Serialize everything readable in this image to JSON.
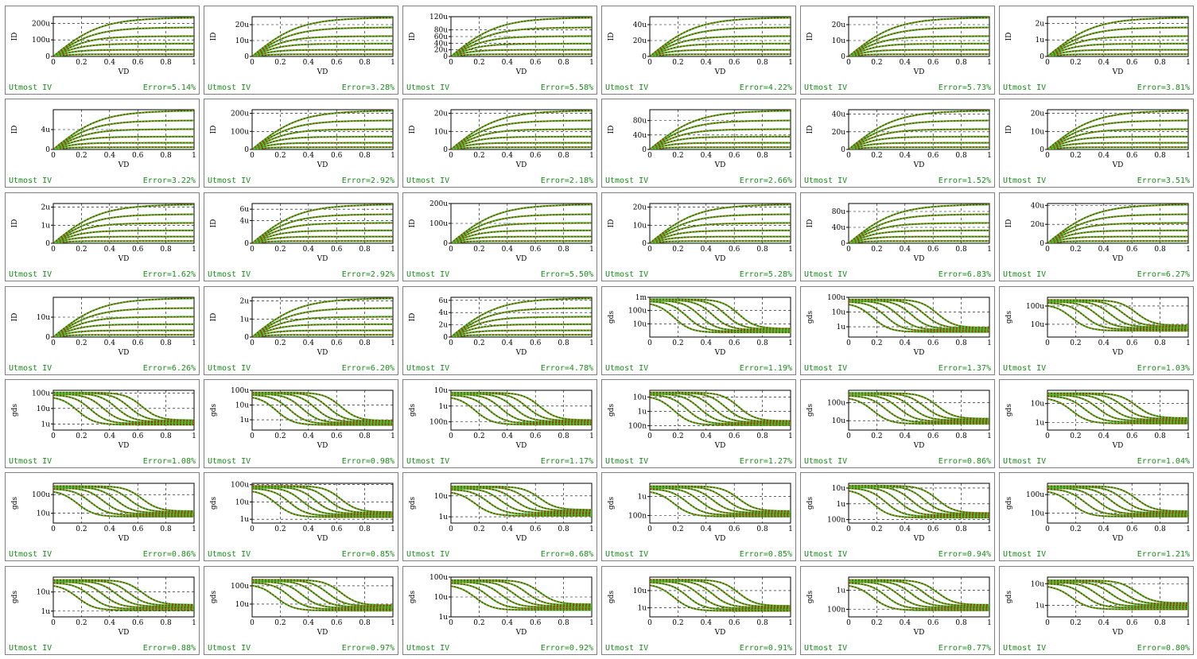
{
  "colors": {
    "measured": "#33cc33",
    "simulated": "#dd0000",
    "footer": "#1a8c1a"
  },
  "panel_footer_label": "Utmost IV",
  "chart_data": [
    {
      "type": "line",
      "plot": "id",
      "xlabel": "VD",
      "ylabel": "ID",
      "xticks": [
        "0",
        "0.2",
        "0.4",
        "0.6",
        "0.8",
        "1"
      ],
      "yticks": [
        "0",
        "100u",
        "200u"
      ],
      "ylim": [
        0,
        240
      ],
      "error": "Error=5.14%"
    },
    {
      "type": "line",
      "plot": "id",
      "xlabel": "VD",
      "ylabel": "ID",
      "xticks": [
        "0",
        "0.2",
        "0.4",
        "0.6",
        "0.8",
        "1"
      ],
      "yticks": [
        "0",
        "10u",
        "20u"
      ],
      "ylim": [
        0,
        25
      ],
      "error": "Error=3.28%"
    },
    {
      "type": "line",
      "plot": "id",
      "xlabel": "VD",
      "ylabel": "ID",
      "xticks": [
        "0",
        "0.2",
        "0.4",
        "0.6",
        "0.8",
        "1"
      ],
      "yticks": [
        "0",
        "20u",
        "40u",
        "60u",
        "80u",
        "120u"
      ],
      "ylim": [
        0,
        120
      ],
      "error": "Error=5.58%"
    },
    {
      "type": "line",
      "plot": "id",
      "xlabel": "VD",
      "ylabel": "ID",
      "xticks": [
        "0",
        "0.2",
        "0.4",
        "0.6",
        "0.8",
        "1"
      ],
      "yticks": [
        "0",
        "20u",
        "40u"
      ],
      "ylim": [
        0,
        50
      ],
      "error": "Error=4.22%"
    },
    {
      "type": "line",
      "plot": "id",
      "xlabel": "VD",
      "ylabel": "ID",
      "xticks": [
        "0",
        "0.2",
        "0.4",
        "0.6",
        "0.8",
        "1"
      ],
      "yticks": [
        "0",
        "10u",
        "20u"
      ],
      "ylim": [
        0,
        25
      ],
      "error": "Error=5.73%"
    },
    {
      "type": "line",
      "plot": "id",
      "xlabel": "VD",
      "ylabel": "ID",
      "xticks": [
        "0",
        "0.2",
        "0.4",
        "0.6",
        "0.8",
        "1"
      ],
      "yticks": [
        "0",
        "1u",
        "2u"
      ],
      "ylim": [
        0,
        2.4
      ],
      "error": "Error=3.81%"
    },
    {
      "type": "line",
      "plot": "id",
      "xlabel": "VD",
      "ylabel": "ID",
      "xticks": [
        "0",
        "0.2",
        "0.4",
        "0.6",
        "0.8",
        "1"
      ],
      "yticks": [
        "0",
        "4u"
      ],
      "ylim": [
        0,
        8
      ],
      "error": "Error=3.22%"
    },
    {
      "type": "line",
      "plot": "id",
      "xlabel": "VD",
      "ylabel": "ID",
      "xticks": [
        "0",
        "0.2",
        "0.4",
        "0.6",
        "0.8",
        "1"
      ],
      "yticks": [
        "0",
        "100u",
        "200u"
      ],
      "ylim": [
        0,
        220
      ],
      "error": "Error=2.92%"
    },
    {
      "type": "line",
      "plot": "id",
      "xlabel": "VD",
      "ylabel": "ID",
      "xticks": [
        "0",
        "0.2",
        "0.4",
        "0.6",
        "0.8",
        "1"
      ],
      "yticks": [
        "0",
        "10u",
        "20u"
      ],
      "ylim": [
        0,
        22
      ],
      "error": "Error=2.18%"
    },
    {
      "type": "line",
      "plot": "id",
      "xlabel": "VD",
      "ylabel": "ID",
      "xticks": [
        "0",
        "0.2",
        "0.4",
        "0.6",
        "0.8",
        "1"
      ],
      "yticks": [
        "0",
        "40u",
        "80u"
      ],
      "ylim": [
        0,
        110
      ],
      "error": "Error=2.66%"
    },
    {
      "type": "line",
      "plot": "id",
      "xlabel": "VD",
      "ylabel": "ID",
      "xticks": [
        "0",
        "0.2",
        "0.4",
        "0.6",
        "0.8",
        "1"
      ],
      "yticks": [
        "0",
        "20u",
        "40u"
      ],
      "ylim": [
        0,
        45
      ],
      "error": "Error=1.52%"
    },
    {
      "type": "line",
      "plot": "id",
      "xlabel": "VD",
      "ylabel": "ID",
      "xticks": [
        "0",
        "0.2",
        "0.4",
        "0.6",
        "0.8",
        "1"
      ],
      "yticks": [
        "0",
        "10u",
        "20u"
      ],
      "ylim": [
        0,
        22
      ],
      "error": "Error=3.51%"
    },
    {
      "type": "line",
      "plot": "id",
      "xlabel": "VD",
      "ylabel": "ID",
      "xticks": [
        "0",
        "0.2",
        "0.4",
        "0.6",
        "0.8",
        "1"
      ],
      "yticks": [
        "0",
        "1u",
        "2u"
      ],
      "ylim": [
        0,
        2.2
      ],
      "error": "Error=1.62%"
    },
    {
      "type": "line",
      "plot": "id",
      "xlabel": "VD",
      "ylabel": "ID",
      "xticks": [
        "0",
        "0.2",
        "0.4",
        "0.6",
        "0.8",
        "1"
      ],
      "yticks": [
        "0",
        "4u",
        "6u"
      ],
      "ylim": [
        0,
        7
      ],
      "error": "Error=2.92%"
    },
    {
      "type": "line",
      "plot": "id",
      "xlabel": "VD",
      "ylabel": "ID",
      "xticks": [
        "0",
        "0.2",
        "0.4",
        "0.6",
        "0.8",
        "1"
      ],
      "yticks": [
        "0",
        "100u",
        "200u"
      ],
      "ylim": [
        0,
        200
      ],
      "error": "Error=5.50%"
    },
    {
      "type": "line",
      "plot": "id",
      "xlabel": "VD",
      "ylabel": "ID",
      "xticks": [
        "0",
        "0.2",
        "0.4",
        "0.6",
        "0.8",
        "1"
      ],
      "yticks": [
        "0",
        "10u",
        "20u"
      ],
      "ylim": [
        0,
        22
      ],
      "error": "Error=5.28%"
    },
    {
      "type": "line",
      "plot": "id",
      "xlabel": "VD",
      "ylabel": "ID",
      "xticks": [
        "0",
        "0.2",
        "0.4",
        "0.6",
        "0.8",
        "1"
      ],
      "yticks": [
        "0",
        "40u",
        "80u"
      ],
      "ylim": [
        0,
        100
      ],
      "error": "Error=6.83%"
    },
    {
      "type": "line",
      "plot": "id",
      "xlabel": "VD",
      "ylabel": "ID",
      "xticks": [
        "0",
        "0.2",
        "0.4",
        "0.6",
        "0.8",
        "1"
      ],
      "yticks": [
        "0",
        "20u",
        "40u"
      ],
      "ylim": [
        0,
        42
      ],
      "error": "Error=6.27%"
    },
    {
      "type": "line",
      "plot": "id",
      "xlabel": "VD",
      "ylabel": "ID",
      "xticks": [
        "0",
        "0.2",
        "0.4",
        "0.6",
        "0.8",
        "1"
      ],
      "yticks": [
        "0",
        "10u"
      ],
      "ylim": [
        0,
        20
      ],
      "error": "Error=6.26%"
    },
    {
      "type": "line",
      "plot": "id",
      "xlabel": "VD",
      "ylabel": "ID",
      "xticks": [
        "0",
        "0.2",
        "0.4",
        "0.6",
        "0.8",
        "1"
      ],
      "yticks": [
        "0",
        "1u",
        "2u"
      ],
      "ylim": [
        0,
        2.2
      ],
      "error": "Error=6.20%"
    },
    {
      "type": "line",
      "plot": "id",
      "xlabel": "VD",
      "ylabel": "ID",
      "xticks": [
        "0",
        "0.2",
        "0.4",
        "0.6",
        "0.8",
        "1"
      ],
      "yticks": [
        "0",
        "2u",
        "4u",
        "6u"
      ],
      "ylim": [
        0,
        6.5
      ],
      "error": "Error=4.78%"
    },
    {
      "type": "line",
      "plot": "gds",
      "xlabel": "VD",
      "ylabel": "gds",
      "xticks": [
        "0",
        "0.2",
        "0.4",
        "0.6",
        "0.8",
        "1"
      ],
      "yticks": [
        "10u",
        "100u",
        "1m"
      ],
      "ylim": [
        1,
        1000
      ],
      "error": "Error=1.19%"
    },
    {
      "type": "line",
      "plot": "gds",
      "xlabel": "VD",
      "ylabel": "gds",
      "xticks": [
        "0",
        "0.2",
        "0.4",
        "0.6",
        "0.8",
        "1"
      ],
      "yticks": [
        "1u",
        "10u",
        "100u"
      ],
      "ylim": [
        0.2,
        100
      ],
      "error": "Error=1.37%"
    },
    {
      "type": "line",
      "plot": "gds",
      "xlabel": "VD",
      "ylabel": "gds",
      "xticks": [
        "0",
        "0.2",
        "0.4",
        "0.6",
        "0.8",
        "1"
      ],
      "yticks": [
        "10u",
        "100u"
      ],
      "ylim": [
        2,
        300
      ],
      "error": "Error=1.03%"
    },
    {
      "type": "line",
      "plot": "gds",
      "xlabel": "VD",
      "ylabel": "gds",
      "xticks": [
        "0",
        "0.2",
        "0.4",
        "0.6",
        "0.8",
        "1"
      ],
      "yticks": [
        "1u",
        "10u",
        "100u"
      ],
      "ylim": [
        0.4,
        150
      ],
      "error": "Error=1.08%"
    },
    {
      "type": "line",
      "plot": "gds",
      "xlabel": "VD",
      "ylabel": "gds",
      "xticks": [
        "0",
        "0.2",
        "0.4",
        "0.6",
        "0.8",
        "1"
      ],
      "yticks": [
        "1u",
        "10u",
        "100u"
      ],
      "ylim": [
        0.2,
        100
      ],
      "error": "Error=0.98%"
    },
    {
      "type": "line",
      "plot": "gds",
      "xlabel": "VD",
      "ylabel": "gds",
      "xticks": [
        "0",
        "0.2",
        "0.4",
        "0.6",
        "0.8",
        "1"
      ],
      "yticks": [
        "100n",
        "1u",
        "10u"
      ],
      "ylim": [
        0.03,
        10
      ],
      "error": "Error=1.17%"
    },
    {
      "type": "line",
      "plot": "gds",
      "xlabel": "VD",
      "ylabel": "gds",
      "xticks": [
        "0",
        "0.2",
        "0.4",
        "0.6",
        "0.8",
        "1"
      ],
      "yticks": [
        "100n",
        "1u",
        "10u"
      ],
      "ylim": [
        0.05,
        30
      ],
      "error": "Error=1.27%"
    },
    {
      "type": "line",
      "plot": "gds",
      "xlabel": "VD",
      "ylabel": "gds",
      "xticks": [
        "0",
        "0.2",
        "0.4",
        "0.6",
        "0.8",
        "1"
      ],
      "yticks": [
        "10u",
        "100u"
      ],
      "ylim": [
        3,
        500
      ],
      "error": "Error=0.86%"
    },
    {
      "type": "line",
      "plot": "gds",
      "xlabel": "VD",
      "ylabel": "gds",
      "xticks": [
        "0",
        "0.2",
        "0.4",
        "0.6",
        "0.8",
        "1"
      ],
      "yticks": [
        "1u",
        "10u"
      ],
      "ylim": [
        0.4,
        50
      ],
      "error": "Error=1.04%"
    },
    {
      "type": "line",
      "plot": "gds",
      "xlabel": "VD",
      "ylabel": "gds",
      "xticks": [
        "0",
        "0.2",
        "0.4",
        "0.6",
        "0.8",
        "1"
      ],
      "yticks": [
        "10u",
        "100u"
      ],
      "ylim": [
        3,
        400
      ],
      "error": "Error=0.86%"
    },
    {
      "type": "line",
      "plot": "gds",
      "xlabel": "VD",
      "ylabel": "gds",
      "xticks": [
        "0",
        "0.2",
        "0.4",
        "0.6",
        "0.8",
        "1"
      ],
      "yticks": [
        "1u",
        "10u",
        "100u"
      ],
      "ylim": [
        0.6,
        120
      ],
      "error": "Error=0.85%"
    },
    {
      "type": "line",
      "plot": "gds",
      "xlabel": "VD",
      "ylabel": "gds",
      "xticks": [
        "0",
        "0.2",
        "0.4",
        "0.6",
        "0.8",
        "1"
      ],
      "yticks": [
        "1u",
        "10u"
      ],
      "ylim": [
        0.5,
        40
      ],
      "error": "Error=0.68%"
    },
    {
      "type": "line",
      "plot": "gds",
      "xlabel": "VD",
      "ylabel": "gds",
      "xticks": [
        "0",
        "0.2",
        "0.4",
        "0.6",
        "0.8",
        "1"
      ],
      "yticks": [
        "100n",
        "1u"
      ],
      "ylim": [
        0.04,
        5
      ],
      "error": "Error=0.85%"
    },
    {
      "type": "line",
      "plot": "gds",
      "xlabel": "VD",
      "ylabel": "gds",
      "xticks": [
        "0",
        "0.2",
        "0.4",
        "0.6",
        "0.8",
        "1"
      ],
      "yticks": [
        "100n",
        "1u",
        "10u"
      ],
      "ylim": [
        0.06,
        20
      ],
      "error": "Error=0.94%"
    },
    {
      "type": "line",
      "plot": "gds",
      "xlabel": "VD",
      "ylabel": "gds",
      "xticks": [
        "0",
        "0.2",
        "0.4",
        "0.6",
        "0.8",
        "1"
      ],
      "yticks": [
        "10u",
        "100u"
      ],
      "ylim": [
        3,
        400
      ],
      "error": "Error=1.21%"
    },
    {
      "type": "line",
      "plot": "gds",
      "xlabel": "VD",
      "ylabel": "gds",
      "xticks": [
        "0",
        "0.2",
        "0.4",
        "0.6",
        "0.8",
        "1"
      ],
      "yticks": [
        "1u",
        "10u"
      ],
      "ylim": [
        0.5,
        60
      ],
      "error": "Error=0.88%"
    },
    {
      "type": "line",
      "plot": "gds",
      "xlabel": "VD",
      "ylabel": "gds",
      "xticks": [
        "0",
        "0.2",
        "0.4",
        "0.6",
        "0.8",
        "1"
      ],
      "yticks": [
        "10u",
        "100u"
      ],
      "ylim": [
        2,
        300
      ],
      "error": "Error=0.97%"
    },
    {
      "type": "line",
      "plot": "gds",
      "xlabel": "VD",
      "ylabel": "gds",
      "xticks": [
        "0",
        "0.2",
        "0.4",
        "0.6",
        "0.8",
        "1"
      ],
      "yticks": [
        "1u",
        "10u",
        "100u"
      ],
      "ylim": [
        1,
        100
      ],
      "error": "Error=0.92%"
    },
    {
      "type": "line",
      "plot": "gds",
      "xlabel": "VD",
      "ylabel": "gds",
      "xticks": [
        "0",
        "0.2",
        "0.4",
        "0.6",
        "0.8",
        "1"
      ],
      "yticks": [
        "1u",
        "10u"
      ],
      "ylim": [
        0.3,
        60
      ],
      "error": "Error=0.91%"
    },
    {
      "type": "line",
      "plot": "gds",
      "xlabel": "VD",
      "ylabel": "gds",
      "xticks": [
        "0",
        "0.2",
        "0.4",
        "0.6",
        "0.8",
        "1"
      ],
      "yticks": [
        "100n",
        "1u"
      ],
      "ylim": [
        0.04,
        5
      ],
      "error": "Error=0.77%"
    },
    {
      "type": "line",
      "plot": "gds",
      "xlabel": "VD",
      "ylabel": "gds",
      "xticks": [
        "0",
        "0.2",
        "0.4",
        "0.6",
        "0.8",
        "1"
      ],
      "yticks": [
        "1u",
        "10u"
      ],
      "ylim": [
        0.3,
        20
      ],
      "error": "Error=0.80%"
    }
  ]
}
